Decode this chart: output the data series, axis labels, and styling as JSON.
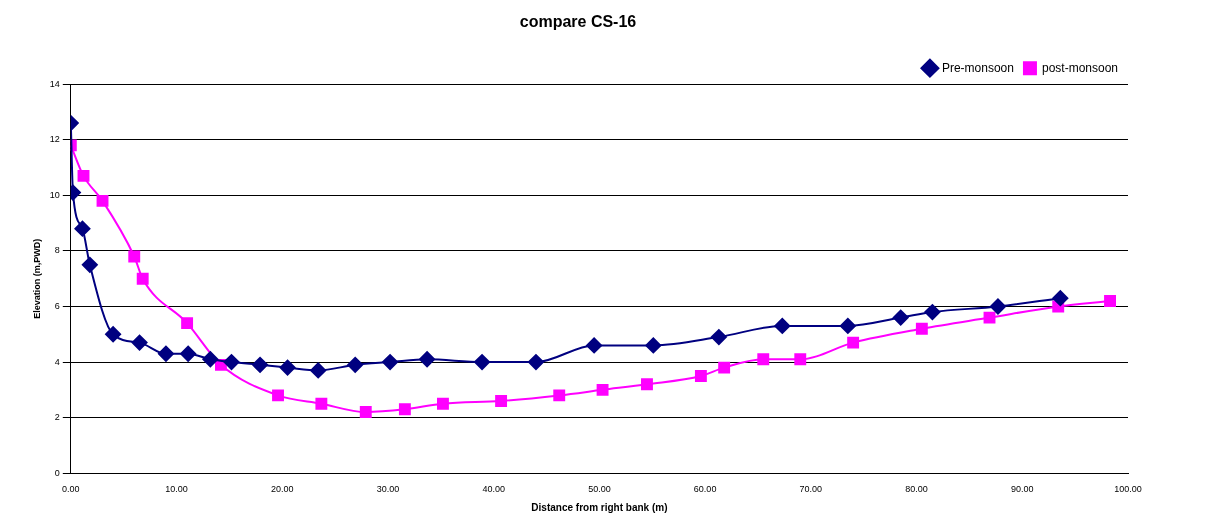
{
  "chart_data": {
    "type": "line",
    "title": "compare CS-16",
    "xlabel": "Distance from right bank (m)",
    "ylabel": "Elevation (m,PWD)",
    "xlim": [
      0,
      100
    ],
    "xticks": [
      {
        "value": 0,
        "label": "0.00"
      },
      {
        "value": 10,
        "label": "10.00"
      },
      {
        "value": 20,
        "label": "20.00"
      },
      {
        "value": 30,
        "label": "30.00"
      },
      {
        "value": 40,
        "label": "40.00"
      },
      {
        "value": 50,
        "label": "50.00"
      },
      {
        "value": 60,
        "label": "60.00"
      },
      {
        "value": 70,
        "label": "70.00"
      },
      {
        "value": 80,
        "label": "80.00"
      },
      {
        "value": 90,
        "label": "90.00"
      },
      {
        "value": 100,
        "label": "100.00"
      }
    ],
    "ylim": [
      0,
      14
    ],
    "yticks": [
      0,
      2,
      4,
      6,
      8,
      10,
      12,
      14
    ],
    "grid": "y",
    "legend": "top right",
    "line_style": "solid",
    "series": [
      {
        "name": "Pre-monsoon",
        "color": "#000080",
        "marker": "diamond",
        "x": [
          0,
          0.2,
          1.1,
          1.8,
          4.0,
          6.5,
          9.0,
          11.1,
          13.2,
          15.2,
          17.9,
          20.5,
          23.4,
          26.9,
          30.2,
          33.7,
          38.9,
          44.0,
          49.5,
          55.1,
          61.3,
          67.3,
          73.5,
          78.5,
          81.5,
          87.7,
          93.6
        ],
        "values": [
          12.6,
          10.1,
          8.8,
          7.5,
          5.0,
          4.7,
          4.3,
          4.3,
          4.1,
          4.0,
          3.9,
          3.8,
          3.7,
          3.9,
          4.0,
          4.1,
          4.0,
          4.0,
          4.6,
          4.6,
          4.9,
          5.3,
          5.3,
          5.6,
          5.8,
          6.0,
          6.3
        ]
      },
      {
        "name": "post-monsoon",
        "color": "#ff00ff",
        "marker": "square",
        "x": [
          0,
          1.2,
          3.0,
          6.0,
          6.8,
          11.0,
          14.2,
          19.6,
          23.7,
          27.9,
          31.6,
          35.2,
          40.7,
          46.2,
          50.3,
          54.5,
          59.6,
          61.8,
          65.5,
          69.0,
          74.0,
          80.5,
          86.9,
          93.4,
          98.3
        ],
        "values": [
          11.8,
          10.7,
          9.8,
          7.8,
          7.0,
          5.4,
          3.9,
          2.8,
          2.5,
          2.2,
          2.3,
          2.5,
          2.6,
          2.8,
          3.0,
          3.2,
          3.5,
          3.8,
          4.1,
          4.1,
          4.7,
          5.2,
          5.6,
          6.0,
          6.2
        ]
      }
    ]
  }
}
